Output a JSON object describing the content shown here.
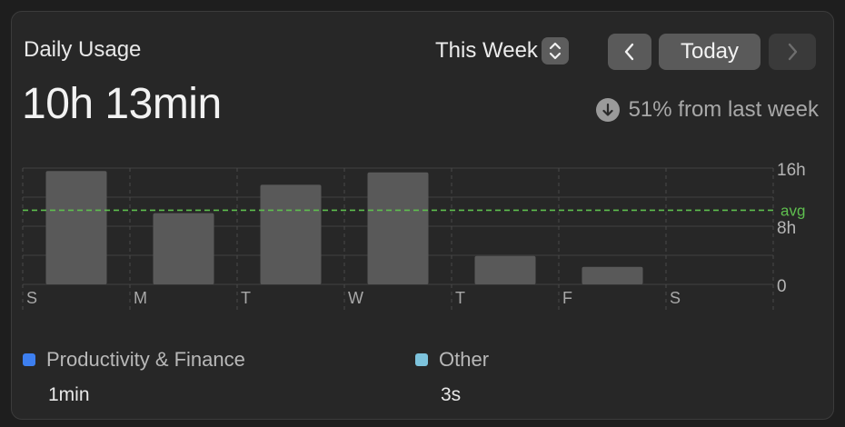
{
  "header": {
    "title": "Daily Usage",
    "total": "10h 13min",
    "range_label": "This Week",
    "today_label": "Today",
    "trend_text": "51% from last week"
  },
  "icons": {
    "range_stepper": "up-down-chevron-icon",
    "prev": "chevron-left-icon",
    "next": "chevron-right-icon",
    "trend": "arrow-down-circle-icon"
  },
  "colors": {
    "bar": "#595959",
    "avg_line": "#5fbf4f",
    "productivity": "#3d7ff0",
    "other": "#7dc3dc"
  },
  "chart_data": {
    "type": "bar",
    "categories": [
      "S",
      "M",
      "T",
      "W",
      "T",
      "F",
      "S"
    ],
    "values": [
      15.6,
      9.8,
      13.7,
      15.4,
      3.9,
      2.4,
      0
    ],
    "ylim": [
      0,
      16
    ],
    "y_ticks": [
      {
        "value": 16,
        "label": "16h"
      },
      {
        "value": 8,
        "label": "8h"
      },
      {
        "value": 0,
        "label": "0"
      }
    ],
    "average": {
      "value": 10.2,
      "label": "avg"
    },
    "grid": true
  },
  "legend": [
    {
      "name": "Productivity & Finance",
      "value": "1min"
    },
    {
      "name": "Other",
      "value": "3s"
    }
  ]
}
